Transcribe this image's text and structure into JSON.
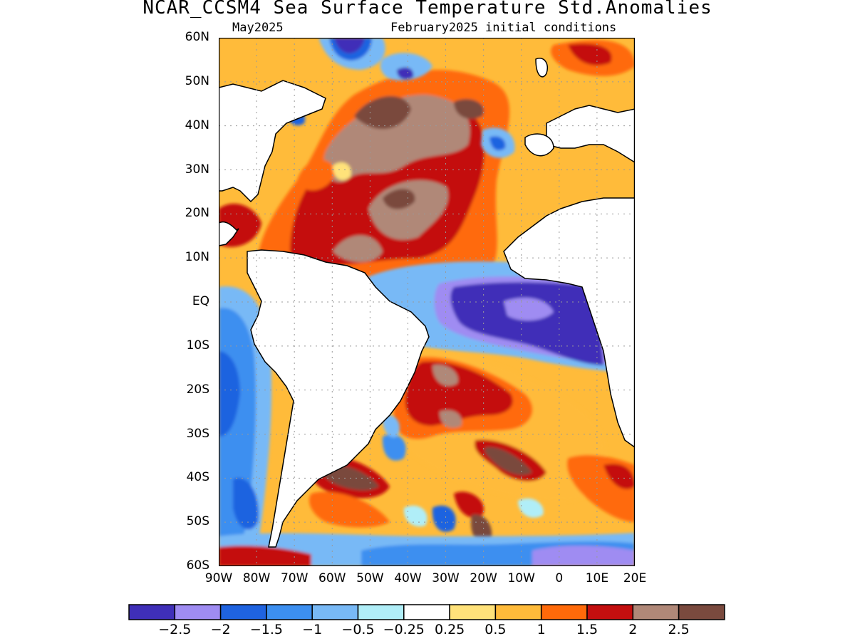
{
  "title": "NCAR_CCSM4 Sea Surface Temperature Std.Anomalies",
  "valid_month": "May2025",
  "initial_conditions": "February2025 initial conditions",
  "lat_labels": [
    "60N",
    "50N",
    "40N",
    "30N",
    "20N",
    "10N",
    "EQ",
    "10S",
    "20S",
    "30S",
    "40S",
    "50S",
    "60S"
  ],
  "lon_labels": [
    "90W",
    "80W",
    "70W",
    "60W",
    "50W",
    "40W",
    "30W",
    "20W",
    "10W",
    "0",
    "10E",
    "20E"
  ],
  "colorbar": {
    "colors": [
      "#3f2fb8",
      "#9f8cf2",
      "#1f63e0",
      "#3c8ff0",
      "#78b9f6",
      "#b0eef8",
      "#ffffff",
      "#ffe27a",
      "#ffbb3a",
      "#ff6a0a",
      "#c40f0f",
      "#b08878",
      "#7a4a3e"
    ],
    "labels": [
      "−2.5",
      "−2",
      "−1.5",
      "−1",
      "−0.5",
      "−0.25",
      "0.25",
      "0.5",
      "1",
      "1.5",
      "2",
      "2.5"
    ]
  },
  "map": {
    "land_color": "#ffffff",
    "coast_color": "#000000",
    "grid_color": "#999999"
  }
}
